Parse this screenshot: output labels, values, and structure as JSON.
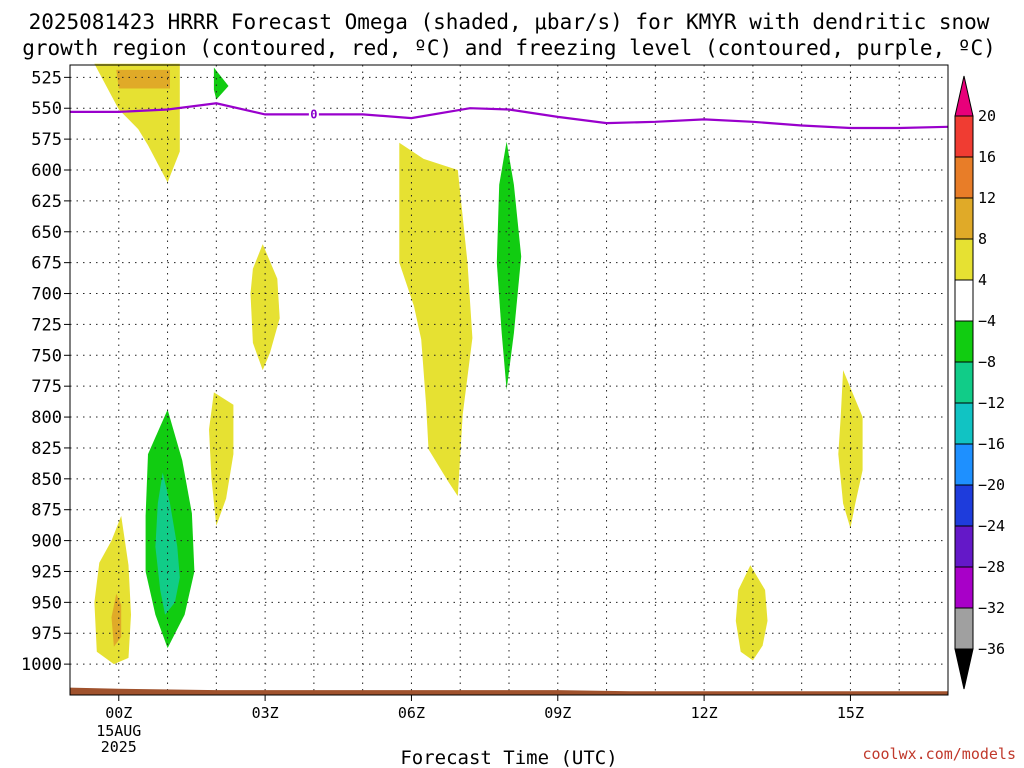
{
  "title": {
    "line1": "2025081423 HRRR Forecast Omega (shaded, μbar/s) for KMYR with dendritic snow",
    "line2": "growth region (contoured, red, ºC) and freezing level (contoured, purple, ºC)"
  },
  "credit": "coolwx.com/models",
  "colorbar": {
    "labels": [
      "20",
      "16",
      "12",
      "8",
      "4",
      "−4",
      "−8",
      "−12",
      "−16",
      "−20",
      "−24",
      "−28",
      "−32",
      "−36"
    ],
    "colors": [
      "#e8007a",
      "#f03c32",
      "#e87d28",
      "#e0aa28",
      "#e6e132",
      "#ffffff",
      "#11cc11",
      "#11cc88",
      "#11c3c3",
      "#1e90ff",
      "#1e3cdc",
      "#6418c8",
      "#a800c8",
      "#a0a0a0",
      "#000000"
    ]
  },
  "chart_data": {
    "type": "contour",
    "x_label": "Forecast Time (UTC)",
    "x_ticks": [
      {
        "label": "00Z",
        "sub": [
          "15AUG",
          "2025"
        ],
        "hour": 0
      },
      {
        "label": "03Z",
        "sub": [],
        "hour": 3
      },
      {
        "label": "06Z",
        "sub": [],
        "hour": 6
      },
      {
        "label": "09Z",
        "sub": [],
        "hour": 9
      },
      {
        "label": "12Z",
        "sub": [],
        "hour": 12
      },
      {
        "label": "15Z",
        "sub": [],
        "hour": 15
      }
    ],
    "x_range_hours": [
      -1,
      17
    ],
    "y_range_mb": [
      1025,
      515
    ],
    "y_ticks": [
      525,
      550,
      575,
      600,
      625,
      650,
      675,
      700,
      725,
      750,
      775,
      800,
      825,
      850,
      875,
      900,
      925,
      950,
      975,
      1000
    ],
    "grid": "dotted",
    "freezing_level": {
      "label": "0",
      "label_at": {
        "hour": 4,
        "mb": 555
      },
      "points": [
        [
          -1,
          553
        ],
        [
          0,
          553
        ],
        [
          1,
          551
        ],
        [
          2,
          546
        ],
        [
          3,
          555
        ],
        [
          4,
          555
        ],
        [
          5,
          555
        ],
        [
          6,
          558
        ],
        [
          7.2,
          550
        ],
        [
          8,
          551
        ],
        [
          9,
          557
        ],
        [
          10,
          562
        ],
        [
          11,
          561
        ],
        [
          12,
          559
        ],
        [
          13,
          561
        ],
        [
          14,
          564
        ],
        [
          15,
          566
        ],
        [
          16,
          566
        ],
        [
          17,
          565
        ]
      ]
    },
    "terrain": {
      "points": [
        [
          -1,
          1019
        ],
        [
          0,
          1020
        ],
        [
          2,
          1021
        ],
        [
          6,
          1021
        ],
        [
          9,
          1021
        ],
        [
          10.5,
          1022
        ],
        [
          12,
          1022
        ],
        [
          17,
          1022
        ]
      ]
    },
    "omega_regions": [
      {
        "value_bin": "4 to 8",
        "color": "#e6e132",
        "points": [
          [
            -0.5,
            514
          ],
          [
            0.0,
            551
          ],
          [
            0.4,
            567
          ],
          [
            0.6,
            580
          ],
          [
            1.0,
            610
          ],
          [
            1.25,
            585
          ],
          [
            1.25,
            514
          ]
        ]
      },
      {
        "value_bin": "8 to 12",
        "color": "#e0aa28",
        "points": [
          [
            -0.05,
            519
          ],
          [
            1.05,
            519
          ],
          [
            1.05,
            534
          ],
          [
            0.0,
            534
          ]
        ]
      },
      {
        "value_bin": "-4 to -8",
        "color": "#11cc11",
        "points": [
          [
            1.95,
            517
          ],
          [
            2.25,
            532
          ],
          [
            2.0,
            543
          ],
          [
            1.95,
            535
          ]
        ]
      },
      {
        "value_bin": "4 to 8",
        "color": "#e6e132",
        "points": [
          [
            5.75,
            578
          ],
          [
            6.25,
            591
          ],
          [
            6.95,
            600
          ],
          [
            7.15,
            675
          ],
          [
            7.25,
            736
          ],
          [
            7.05,
            798
          ],
          [
            6.95,
            864
          ],
          [
            6.75,
            852
          ],
          [
            6.35,
            826
          ],
          [
            6.3,
            790
          ],
          [
            6.2,
            737
          ],
          [
            6.05,
            710
          ],
          [
            5.75,
            675
          ],
          [
            5.75,
            622
          ]
        ]
      },
      {
        "value_bin": "-4 to -8",
        "color": "#11cc11",
        "points": [
          [
            7.95,
            577
          ],
          [
            8.1,
            612
          ],
          [
            8.25,
            670
          ],
          [
            8.1,
            732
          ],
          [
            7.95,
            778
          ],
          [
            7.85,
            732
          ],
          [
            7.75,
            675
          ],
          [
            7.8,
            612
          ]
        ]
      },
      {
        "value_bin": "4 to 8",
        "color": "#e6e132",
        "points": [
          [
            2.95,
            660
          ],
          [
            3.25,
            688
          ],
          [
            3.3,
            720
          ],
          [
            3.1,
            748
          ],
          [
            2.95,
            762
          ],
          [
            2.75,
            740
          ],
          [
            2.7,
            700
          ],
          [
            2.75,
            680
          ]
        ]
      },
      {
        "value_bin": "4 to 8",
        "color": "#e6e132",
        "points": [
          [
            1.95,
            780
          ],
          [
            2.35,
            790
          ],
          [
            2.35,
            830
          ],
          [
            2.2,
            866
          ],
          [
            2.0,
            888
          ],
          [
            1.9,
            850
          ],
          [
            1.85,
            810
          ]
        ]
      },
      {
        "value_bin": "-4 to -8",
        "color": "#11cc11",
        "points": [
          [
            1.0,
            794
          ],
          [
            1.3,
            835
          ],
          [
            1.5,
            878
          ],
          [
            1.55,
            925
          ],
          [
            1.35,
            960
          ],
          [
            1.0,
            987
          ],
          [
            0.75,
            960
          ],
          [
            0.55,
            925
          ],
          [
            0.55,
            880
          ],
          [
            0.6,
            830
          ]
        ]
      },
      {
        "value_bin": "-8 to -12",
        "color": "#11cc88",
        "points": [
          [
            0.9,
            845
          ],
          [
            1.05,
            870
          ],
          [
            1.2,
            905
          ],
          [
            1.25,
            930
          ],
          [
            1.15,
            950
          ],
          [
            0.95,
            960
          ],
          [
            0.85,
            940
          ],
          [
            0.75,
            905
          ],
          [
            0.8,
            870
          ]
        ]
      },
      {
        "value_bin": "4 to 8",
        "color": "#e6e132",
        "points": [
          [
            0.05,
            880
          ],
          [
            0.2,
            920
          ],
          [
            0.25,
            960
          ],
          [
            0.2,
            995
          ],
          [
            -0.1,
            1000
          ],
          [
            -0.45,
            990
          ],
          [
            -0.5,
            950
          ],
          [
            -0.4,
            918
          ],
          [
            -0.15,
            900
          ]
        ]
      },
      {
        "value_bin": "8 to 12",
        "color": "#e0aa28",
        "points": [
          [
            -0.05,
            943
          ],
          [
            0.05,
            952
          ],
          [
            0.05,
            978
          ],
          [
            -0.1,
            986
          ],
          [
            -0.15,
            962
          ]
        ]
      },
      {
        "value_bin": "4 to 8",
        "color": "#e6e132",
        "points": [
          [
            14.85,
            762
          ],
          [
            15.25,
            800
          ],
          [
            15.25,
            843
          ],
          [
            15.1,
            870
          ],
          [
            15.0,
            890
          ],
          [
            14.85,
            870
          ],
          [
            14.75,
            830
          ],
          [
            14.8,
            800
          ]
        ]
      },
      {
        "value_bin": "4 to 8",
        "color": "#e6e132",
        "points": [
          [
            12.95,
            920
          ],
          [
            13.25,
            940
          ],
          [
            13.3,
            965
          ],
          [
            13.2,
            985
          ],
          [
            13.0,
            997
          ],
          [
            12.75,
            990
          ],
          [
            12.65,
            965
          ],
          [
            12.7,
            940
          ]
        ]
      }
    ]
  }
}
